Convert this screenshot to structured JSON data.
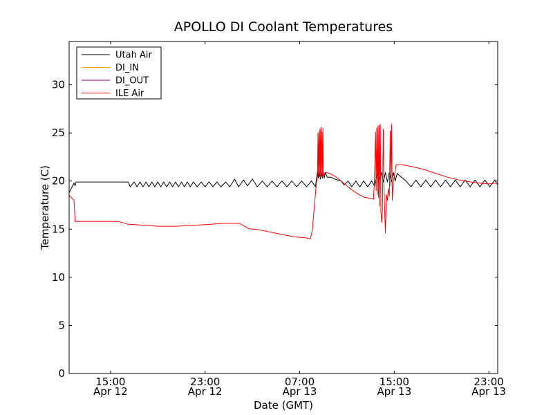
{
  "chart_data": {
    "type": "line",
    "title": "APOLLO DI Coolant Temperatures",
    "xlabel": "Date (GMT)",
    "ylabel": "Temperature (C)",
    "ylim": [
      0,
      34.5
    ],
    "xlim": [
      "2012-04-12 11:30",
      "2012-04-13 23:45"
    ],
    "yticks": [
      0,
      5,
      10,
      15,
      20,
      25,
      30
    ],
    "xticks": [
      {
        "t": "2012-04-12 15:00",
        "line1": "15:00",
        "line2": "Apr 12"
      },
      {
        "t": "2012-04-12 23:00",
        "line1": "23:00",
        "line2": "Apr 12"
      },
      {
        "t": "2012-04-13 07:00",
        "line1": "07:00",
        "line2": "Apr 13"
      },
      {
        "t": "2012-04-13 15:00",
        "line1": "15:00",
        "line2": "Apr 13"
      },
      {
        "t": "2012-04-13 23:00",
        "line1": "23:00",
        "line2": "Apr 13"
      }
    ],
    "grid": false,
    "legend_position": "top-left",
    "series": [
      {
        "name": "Utah Air",
        "color": "#000000",
        "points": [
          [
            "2012-04-12 11:30",
            18.8
          ],
          [
            "2012-04-12 11:55",
            19.8
          ],
          [
            "2012-04-12 12:00",
            19.5
          ],
          [
            "2012-04-12 12:05",
            19.9
          ],
          [
            "2012-04-12 14:30",
            19.9
          ],
          [
            "2012-04-12 15:30",
            19.9
          ],
          [
            "2012-04-12 16:30",
            19.9
          ],
          [
            "2012-04-12 16:40",
            19.4
          ],
          [
            "2012-04-12 17:00",
            19.9
          ],
          [
            "2012-04-12 17:15",
            19.4
          ],
          [
            "2012-04-12 17:30",
            19.9
          ],
          [
            "2012-04-12 17:45",
            19.4
          ],
          [
            "2012-04-12 18:00",
            19.9
          ],
          [
            "2012-04-12 18:15",
            19.4
          ],
          [
            "2012-04-12 18:30",
            19.9
          ],
          [
            "2012-04-12 18:45",
            19.4
          ],
          [
            "2012-04-12 19:00",
            19.9
          ],
          [
            "2012-04-12 19:15",
            19.4
          ],
          [
            "2012-04-12 19:30",
            19.9
          ],
          [
            "2012-04-12 19:45",
            19.4
          ],
          [
            "2012-04-12 20:00",
            19.9
          ],
          [
            "2012-04-12 20:15",
            19.4
          ],
          [
            "2012-04-12 20:30",
            19.9
          ],
          [
            "2012-04-12 20:45",
            19.4
          ],
          [
            "2012-04-12 21:00",
            19.9
          ],
          [
            "2012-04-12 21:15",
            19.4
          ],
          [
            "2012-04-12 21:30",
            19.9
          ],
          [
            "2012-04-12 21:45",
            19.4
          ],
          [
            "2012-04-12 22:00",
            19.9
          ],
          [
            "2012-04-12 22:20",
            19.4
          ],
          [
            "2012-04-12 22:40",
            19.9
          ],
          [
            "2012-04-12 23:00",
            19.4
          ],
          [
            "2012-04-12 23:20",
            19.9
          ],
          [
            "2012-04-12 23:40",
            19.4
          ],
          [
            "2012-04-13 00:00",
            19.9
          ],
          [
            "2012-04-13 00:20",
            19.4
          ],
          [
            "2012-04-13 00:45",
            19.9
          ],
          [
            "2012-04-13 01:05",
            19.4
          ],
          [
            "2012-04-13 01:30",
            20.2
          ],
          [
            "2012-04-13 01:50",
            19.4
          ],
          [
            "2012-04-13 02:15",
            20.1
          ],
          [
            "2012-04-13 02:35",
            19.5
          ],
          [
            "2012-04-13 03:00",
            20.2
          ],
          [
            "2012-04-13 03:25",
            19.4
          ],
          [
            "2012-04-13 03:50",
            20.0
          ],
          [
            "2012-04-13 04:15",
            19.4
          ],
          [
            "2012-04-13 04:40",
            20.0
          ],
          [
            "2012-04-13 05:05",
            19.4
          ],
          [
            "2012-04-13 05:30",
            20.0
          ],
          [
            "2012-04-13 05:55",
            19.4
          ],
          [
            "2012-04-13 06:20",
            20.0
          ],
          [
            "2012-04-13 06:45",
            19.4
          ],
          [
            "2012-04-13 07:10",
            20.0
          ],
          [
            "2012-04-13 07:35",
            19.4
          ],
          [
            "2012-04-13 08:00",
            20.0
          ],
          [
            "2012-04-13 08:20",
            19.4
          ],
          [
            "2012-04-13 08:30",
            21.0
          ],
          [
            "2012-04-13 08:35",
            20.3
          ],
          [
            "2012-04-13 08:40",
            21.1
          ],
          [
            "2012-04-13 08:45",
            20.2
          ],
          [
            "2012-04-13 08:50",
            21.0
          ],
          [
            "2012-04-13 08:55",
            20.3
          ],
          [
            "2012-04-13 09:00",
            20.9
          ],
          [
            "2012-04-13 09:05",
            20.3
          ],
          [
            "2012-04-13 09:10",
            20.9
          ],
          [
            "2012-04-13 09:20",
            20.4
          ],
          [
            "2012-04-13 09:40",
            20.4
          ],
          [
            "2012-04-13 10:00",
            20.2
          ],
          [
            "2012-04-13 10:30",
            20.0
          ],
          [
            "2012-04-13 10:45",
            19.6
          ],
          [
            "2012-04-13 11:05",
            20.0
          ],
          [
            "2012-04-13 11:25",
            19.4
          ],
          [
            "2012-04-13 11:45",
            20.0
          ],
          [
            "2012-04-13 12:05",
            19.4
          ],
          [
            "2012-04-13 12:25",
            20.0
          ],
          [
            "2012-04-13 12:45",
            19.4
          ],
          [
            "2012-04-13 13:05",
            20.0
          ],
          [
            "2012-04-13 13:20",
            19.5
          ],
          [
            "2012-04-13 13:35",
            20.9
          ],
          [
            "2012-04-13 13:45",
            20.1
          ],
          [
            "2012-04-13 13:55",
            20.9
          ],
          [
            "2012-04-13 14:05",
            19.9
          ],
          [
            "2012-04-13 14:15",
            20.9
          ],
          [
            "2012-04-13 14:25",
            19.9
          ],
          [
            "2012-04-13 14:35",
            20.9
          ],
          [
            "2012-04-13 14:45",
            19.9
          ],
          [
            "2012-04-13 14:55",
            20.9
          ],
          [
            "2012-04-13 15:05",
            20.0
          ],
          [
            "2012-04-13 15:15",
            20.8
          ],
          [
            "2012-04-13 15:30",
            20.5
          ],
          [
            "2012-04-13 16:00",
            20.0
          ],
          [
            "2012-04-13 16:25",
            19.4
          ],
          [
            "2012-04-13 16:50",
            20.1
          ],
          [
            "2012-04-13 17:15",
            19.4
          ],
          [
            "2012-04-13 17:40",
            20.1
          ],
          [
            "2012-04-13 18:05",
            19.4
          ],
          [
            "2012-04-13 18:30",
            20.1
          ],
          [
            "2012-04-13 18:55",
            19.4
          ],
          [
            "2012-04-13 19:20",
            20.1
          ],
          [
            "2012-04-13 19:45",
            19.4
          ],
          [
            "2012-04-13 20:10",
            20.1
          ],
          [
            "2012-04-13 20:35",
            19.4
          ],
          [
            "2012-04-13 21:00",
            20.1
          ],
          [
            "2012-04-13 21:25",
            19.4
          ],
          [
            "2012-04-13 21:50",
            20.1
          ],
          [
            "2012-04-13 22:15",
            19.4
          ],
          [
            "2012-04-13 22:40",
            20.1
          ],
          [
            "2012-04-13 23:05",
            19.4
          ],
          [
            "2012-04-13 23:30",
            20.1
          ],
          [
            "2012-04-13 23:45",
            19.6
          ]
        ]
      },
      {
        "name": "DI_IN",
        "color": "#ffa500",
        "points": []
      },
      {
        "name": "DI_OUT",
        "color": "#800080",
        "points": []
      },
      {
        "name": "ILE Air",
        "color": "#ff0000",
        "points": [
          [
            "2012-04-12 11:30",
            18.5
          ],
          [
            "2012-04-12 11:55",
            18.0
          ],
          [
            "2012-04-12 12:00",
            15.8
          ],
          [
            "2012-04-12 15:00",
            15.8
          ],
          [
            "2012-04-12 15:40",
            15.8
          ],
          [
            "2012-04-12 16:30",
            15.5
          ],
          [
            "2012-04-12 18:00",
            15.4
          ],
          [
            "2012-04-12 19:00",
            15.3
          ],
          [
            "2012-04-12 20:30",
            15.3
          ],
          [
            "2012-04-12 22:00",
            15.4
          ],
          [
            "2012-04-12 23:30",
            15.5
          ],
          [
            "2012-04-13 00:30",
            15.6
          ],
          [
            "2012-04-13 01:30",
            15.6
          ],
          [
            "2012-04-13 01:55",
            15.6
          ],
          [
            "2012-04-13 02:20",
            15.3
          ],
          [
            "2012-04-13 02:40",
            15.05
          ],
          [
            "2012-04-13 03:30",
            14.95
          ],
          [
            "2012-04-13 04:30",
            14.7
          ],
          [
            "2012-04-13 05:30",
            14.45
          ],
          [
            "2012-04-13 06:30",
            14.2
          ],
          [
            "2012-04-13 07:30",
            14.1
          ],
          [
            "2012-04-13 07:55",
            14.0
          ],
          [
            "2012-04-13 08:05",
            15.0
          ],
          [
            "2012-04-13 08:15",
            17.5
          ],
          [
            "2012-04-13 08:25",
            19.8
          ],
          [
            "2012-04-13 08:30",
            20.5
          ],
          [
            "2012-04-13 08:33",
            25.0
          ],
          [
            "2012-04-13 08:35",
            20.6
          ],
          [
            "2012-04-13 08:38",
            25.2
          ],
          [
            "2012-04-13 08:40",
            20.5
          ],
          [
            "2012-04-13 08:43",
            25.4
          ],
          [
            "2012-04-13 08:45",
            20.4
          ],
          [
            "2012-04-13 08:48",
            25.6
          ],
          [
            "2012-04-13 08:50",
            20.5
          ],
          [
            "2012-04-13 08:53",
            25.1
          ],
          [
            "2012-04-13 08:55",
            20.4
          ],
          [
            "2012-04-13 08:58",
            25.5
          ],
          [
            "2012-04-13 09:00",
            20.6
          ],
          [
            "2012-04-13 09:10",
            20.9
          ],
          [
            "2012-04-13 09:30",
            20.8
          ],
          [
            "2012-04-13 10:00",
            20.5
          ],
          [
            "2012-04-13 10:30",
            20.0
          ],
          [
            "2012-04-13 11:00",
            19.5
          ],
          [
            "2012-04-13 11:30",
            19.0
          ],
          [
            "2012-04-13 12:00",
            18.6
          ],
          [
            "2012-04-13 12:30",
            18.3
          ],
          [
            "2012-04-13 13:00",
            18.2
          ],
          [
            "2012-04-13 13:15",
            18.1
          ],
          [
            "2012-04-13 13:20",
            20.5
          ],
          [
            "2012-04-13 13:25",
            25.1
          ],
          [
            "2012-04-13 13:28",
            19.0
          ],
          [
            "2012-04-13 13:31",
            25.5
          ],
          [
            "2012-04-13 13:34",
            18.6
          ],
          [
            "2012-04-13 13:37",
            25.7
          ],
          [
            "2012-04-13 13:40",
            18.3
          ],
          [
            "2012-04-13 13:43",
            25.8
          ],
          [
            "2012-04-13 13:46",
            17.4
          ],
          [
            "2012-04-13 13:49",
            25.9
          ],
          [
            "2012-04-13 13:52",
            16.8
          ],
          [
            "2012-04-13 13:56",
            15.7
          ],
          [
            "2012-04-13 14:00",
            17.0
          ],
          [
            "2012-04-13 14:04",
            25.4
          ],
          [
            "2012-04-13 14:08",
            19.5
          ],
          [
            "2012-04-13 14:12",
            16.3
          ],
          [
            "2012-04-13 14:15",
            14.6
          ],
          [
            "2012-04-13 14:20",
            18.6
          ],
          [
            "2012-04-13 14:25",
            18.0
          ],
          [
            "2012-04-13 14:30",
            19.2
          ],
          [
            "2012-04-13 14:35",
            18.4
          ],
          [
            "2012-04-13 14:40",
            25.2
          ],
          [
            "2012-04-13 14:43",
            19.5
          ],
          [
            "2012-04-13 14:46",
            25.9
          ],
          [
            "2012-04-13 14:50",
            18.0
          ],
          [
            "2012-04-13 14:55",
            19.9
          ],
          [
            "2012-04-13 15:00",
            20.5
          ],
          [
            "2012-04-13 15:10",
            21.7
          ],
          [
            "2012-04-13 15:40",
            21.7
          ],
          [
            "2012-04-13 16:30",
            21.5
          ],
          [
            "2012-04-13 17:30",
            21.2
          ],
          [
            "2012-04-13 18:30",
            20.8
          ],
          [
            "2012-04-13 19:30",
            20.4
          ],
          [
            "2012-04-13 20:30",
            20.1
          ],
          [
            "2012-04-13 21:30",
            19.9
          ],
          [
            "2012-04-13 22:30",
            19.75
          ],
          [
            "2012-04-13 23:00",
            19.7
          ],
          [
            "2012-04-13 23:45",
            19.8
          ]
        ]
      }
    ]
  }
}
